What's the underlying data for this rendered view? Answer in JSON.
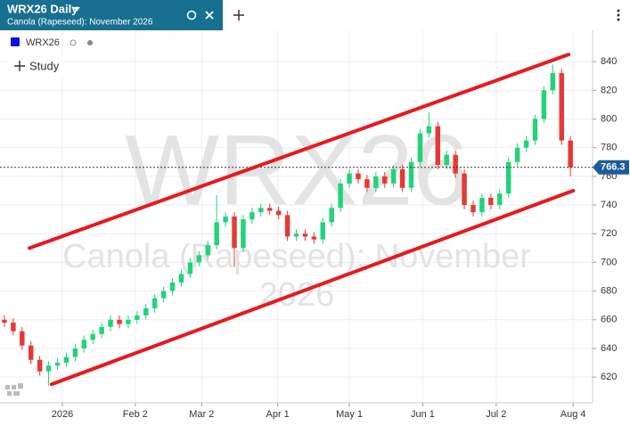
{
  "chart_data": {
    "type": "candlestick",
    "title": "WRX26 Daily",
    "subtitle": "Canola (Rapeseed): November 2026",
    "series_name": "WRX26",
    "series_color": "#1111dd",
    "watermark": [
      "WRX26",
      "Canola (Rapeseed): November",
      "2026"
    ],
    "up_color": "#22d37a",
    "down_color": "#e53935",
    "open": [
      660,
      658,
      652,
      642,
      632,
      624,
      628,
      630,
      634,
      640,
      646,
      650,
      655,
      660,
      657,
      660,
      663,
      668,
      675,
      680,
      686,
      692,
      700,
      705,
      712,
      728,
      732,
      710,
      730,
      735,
      738,
      736,
      733,
      718,
      720,
      718,
      716,
      728,
      738,
      755,
      762,
      758,
      752,
      760,
      755,
      765,
      752,
      770,
      790,
      795,
      768,
      775,
      762,
      740,
      735,
      745,
      740,
      748,
      770,
      780,
      785,
      800,
      820,
      832,
      785
    ],
    "high": [
      663,
      661,
      655,
      645,
      635,
      631,
      633,
      637,
      643,
      649,
      653,
      658,
      663,
      663,
      663,
      666,
      671,
      678,
      683,
      689,
      695,
      703,
      708,
      715,
      747,
      735,
      735,
      733,
      738,
      741,
      741,
      739,
      736,
      723,
      723,
      721,
      731,
      741,
      758,
      765,
      765,
      761,
      763,
      763,
      768,
      768,
      773,
      793,
      805,
      798,
      778,
      778,
      765,
      743,
      748,
      748,
      751,
      773,
      783,
      788,
      803,
      823,
      838,
      835,
      788
    ],
    "low": [
      655,
      649,
      639,
      629,
      621,
      614,
      625,
      627,
      631,
      637,
      643,
      647,
      652,
      654,
      654,
      657,
      660,
      665,
      672,
      677,
      683,
      689,
      697,
      702,
      709,
      725,
      697,
      707,
      727,
      732,
      733,
      730,
      715,
      715,
      715,
      713,
      713,
      725,
      735,
      752,
      755,
      749,
      749,
      752,
      752,
      749,
      749,
      767,
      787,
      765,
      765,
      759,
      737,
      732,
      732,
      737,
      737,
      745,
      767,
      777,
      782,
      797,
      817,
      782,
      760
    ],
    "close": [
      658,
      652,
      642,
      632,
      624,
      628,
      630,
      634,
      640,
      646,
      650,
      655,
      660,
      657,
      660,
      663,
      668,
      675,
      680,
      686,
      692,
      700,
      705,
      712,
      728,
      732,
      710,
      730,
      735,
      738,
      736,
      733,
      718,
      720,
      718,
      716,
      728,
      738,
      755,
      762,
      758,
      752,
      760,
      755,
      765,
      752,
      770,
      790,
      795,
      768,
      775,
      762,
      740,
      735,
      745,
      740,
      748,
      770,
      780,
      785,
      800,
      820,
      832,
      785,
      766.3
    ],
    "xlim": [
      -0.5,
      66.5
    ],
    "xticks": [
      {
        "value": 6.55,
        "label": "2026"
      },
      {
        "value": 14.8,
        "label": "Feb 2"
      },
      {
        "value": 22.3,
        "label": "Mar 2"
      },
      {
        "value": 30.9,
        "label": "Apr 1"
      },
      {
        "value": 39,
        "label": "May 1"
      },
      {
        "value": 47.3,
        "label": "Jun 1"
      },
      {
        "value": 55.6,
        "label": "Jul 2"
      },
      {
        "value": 64.3,
        "label": "Aug 4"
      }
    ],
    "ylim": [
      612,
      883
    ],
    "yticks": [
      620,
      640,
      660,
      680,
      700,
      720,
      740,
      760,
      780,
      800,
      820,
      840
    ],
    "grid": true,
    "trend_lines": [
      {
        "x": [
          2.83,
          63.8
        ],
        "y": [
          710,
          845
        ],
        "color": "#e8191e"
      },
      {
        "x": [
          5.34,
          64.3
        ],
        "y": [
          615,
          750
        ],
        "color": "#e8191e"
      }
    ]
  },
  "ui": {
    "study_button": "Study"
  }
}
